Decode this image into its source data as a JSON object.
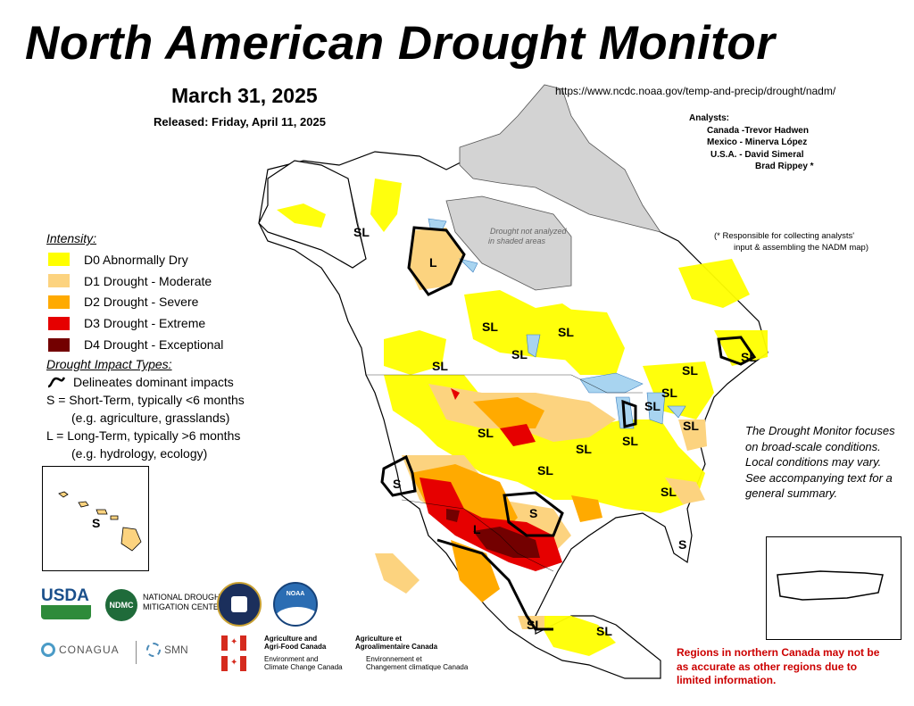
{
  "header": {
    "title": "North American Drought Monitor",
    "date": "March 31, 2025",
    "released": "Released: Friday, April 11, 2025",
    "url": "https://www.ncdc.noaa.gov/temp-and-precip/drought/nadm/"
  },
  "analysts": {
    "heading": "Analysts:",
    "rows": [
      "Canada -Trevor Hadwen",
      "Mexico - Minerva López",
      "U.S.A. -  David Simeral",
      "Brad Rippey *"
    ],
    "note_line1": "(* Responsible for collecting analysts'",
    "note_line2": "input & assembling the NADM map)"
  },
  "legend": {
    "heading": "Intensity:",
    "items": [
      {
        "label": "D0 Abnormally Dry",
        "color": "#ffff00"
      },
      {
        "label": "D1 Drought - Moderate",
        "color": "#fcd37f"
      },
      {
        "label": "D2 Drought - Severe",
        "color": "#ffaa00"
      },
      {
        "label": "D3 Drought - Extreme",
        "color": "#e60000"
      },
      {
        "label": "D4 Drought - Exceptional",
        "color": "#730000"
      }
    ]
  },
  "impacts": {
    "heading": "Drought Impact Types:",
    "delineates": "Delineates dominant impacts",
    "short_term": "S = Short-Term, typically <6 months",
    "short_term_eg": "(e.g. agriculture, grasslands)",
    "long_term": "L = Long-Term, typically >6 months",
    "long_term_eg": "(e.g. hydrology, ecology)"
  },
  "map": {
    "no_analysis_line1": "Drought not analyzed",
    "no_analysis_line2": "in shaded areas",
    "labels": [
      {
        "id": "sl-alaska",
        "text": "SL"
      },
      {
        "id": "l-nwt",
        "text": "L"
      },
      {
        "id": "sl-bc",
        "text": "SL"
      },
      {
        "id": "sl-sask",
        "text": "SL"
      },
      {
        "id": "sl-ontario",
        "text": "SL"
      },
      {
        "id": "sl-pnw",
        "text": "SL"
      },
      {
        "id": "sl-quebec",
        "text": "SL"
      },
      {
        "id": "sl-maritimes",
        "text": "SL"
      },
      {
        "id": "sl-greatlakes1",
        "text": "SL"
      },
      {
        "id": "sl-greatlakes2",
        "text": "SL"
      },
      {
        "id": "sl-greatlakes3",
        "text": "SL"
      },
      {
        "id": "sl-northeast",
        "text": "SL"
      },
      {
        "id": "sl-plains",
        "text": "SL"
      },
      {
        "id": "sl-ohio",
        "text": "SL"
      },
      {
        "id": "sl-southeast",
        "text": "SL"
      },
      {
        "id": "sl-midsouth",
        "text": "SL"
      },
      {
        "id": "s-california",
        "text": "S"
      },
      {
        "id": "s-texas",
        "text": "S"
      },
      {
        "id": "l-southwest",
        "text": "L"
      },
      {
        "id": "s-florida",
        "text": "S"
      },
      {
        "id": "sl-mexico",
        "text": "SL"
      },
      {
        "id": "sl-yucatan",
        "text": "SL"
      },
      {
        "id": "s-hawaii",
        "text": "S"
      }
    ]
  },
  "info_note": "The Drought Monitor focuses on broad-scale conditions.  Local conditions may vary. See accompanying text for a general summary.",
  "warning": "Regions in northern Canada may not be as accurate as other regions due to limited information.",
  "logos": {
    "usda": "USDA",
    "ndmc_line1": "NATIONAL DROUGHT",
    "ndmc_line2": "MITIGATION CENTER",
    "ndmc_badge": "NDMC",
    "noaa": "NOAA",
    "conagua": "CONAGUA",
    "smn": "SMN",
    "agr_en_1": "Agriculture and",
    "agr_en_2": "Agri-Food Canada",
    "agr_fr_1": "Agriculture et",
    "agr_fr_2": "Agroalimentaire Canada",
    "env_en_1": "Environment and",
    "env_en_2": "Climate Change Canada",
    "env_fr_1": "Environnement et",
    "env_fr_2": "Changement climatique Canada"
  }
}
